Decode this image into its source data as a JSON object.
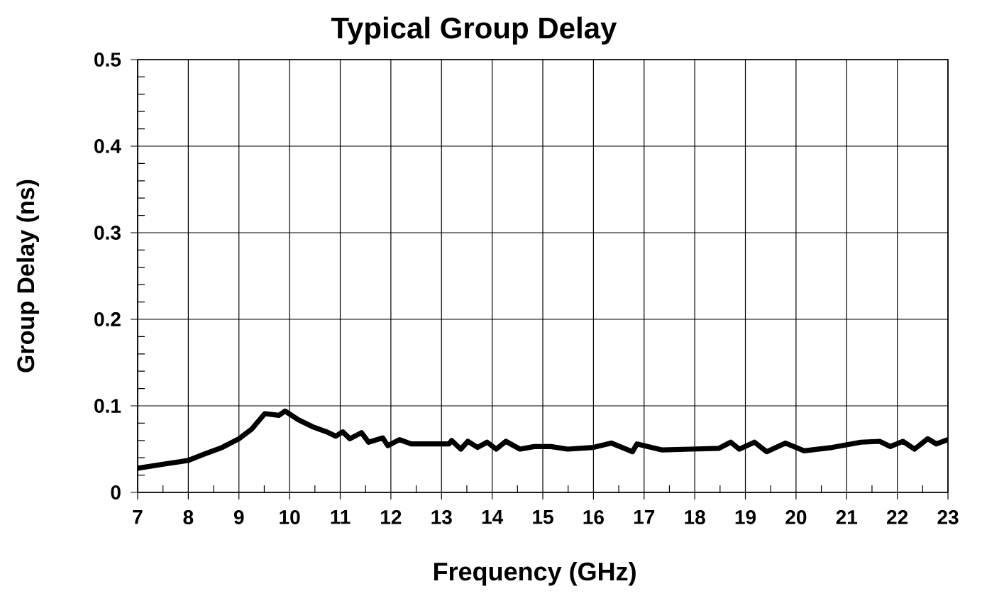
{
  "chart_data": {
    "type": "line",
    "title": "Typical Group Delay",
    "xlabel": "Frequency  (GHz)",
    "ylabel": "Group Delay (ns)",
    "x": [
      7.0,
      7.55,
      8.0,
      8.3,
      8.67,
      9.0,
      9.25,
      9.51,
      9.79,
      9.91,
      10.17,
      10.45,
      10.73,
      10.91,
      11.05,
      11.19,
      11.42,
      11.56,
      11.84,
      11.94,
      12.17,
      12.4,
      13.15,
      13.2,
      13.38,
      13.52,
      13.71,
      13.9,
      14.08,
      14.27,
      14.55,
      14.83,
      15.16,
      15.49,
      16.0,
      16.35,
      16.77,
      16.86,
      17.36,
      17.92,
      18.48,
      18.71,
      18.88,
      19.18,
      19.42,
      19.79,
      20.16,
      20.72,
      21.28,
      21.65,
      21.86,
      22.11,
      22.34,
      22.6,
      22.77,
      23.0
    ],
    "series": [
      {
        "color": "#000000",
        "line_style": "solid",
        "values": [
          0.028,
          0.033,
          0.037,
          0.044,
          0.052,
          0.062,
          0.073,
          0.091,
          0.089,
          0.094,
          0.084,
          0.076,
          0.07,
          0.065,
          0.07,
          0.062,
          0.069,
          0.058,
          0.063,
          0.054,
          0.061,
          0.056,
          0.056,
          0.06,
          0.05,
          0.059,
          0.052,
          0.058,
          0.05,
          0.059,
          0.05,
          0.053,
          0.053,
          0.05,
          0.052,
          0.057,
          0.047,
          0.056,
          0.049,
          0.05,
          0.051,
          0.058,
          0.05,
          0.058,
          0.047,
          0.057,
          0.048,
          0.052,
          0.058,
          0.059,
          0.053,
          0.059,
          0.05,
          0.062,
          0.056,
          0.061
        ]
      }
    ],
    "xlim": [
      7,
      23
    ],
    "ylim": [
      0,
      0.5
    ],
    "xticks": [
      7,
      {
        "value": 7.5,
        "label": null
      },
      8,
      {
        "value": 8.5,
        "label": null
      },
      9,
      {
        "value": 9.5,
        "label": null
      },
      10,
      {
        "value": 10.5,
        "label": null
      },
      11,
      {
        "value": 11.5,
        "label": null
      },
      12,
      {
        "value": 12.5,
        "label": null
      },
      13,
      {
        "value": 13.5,
        "label": null
      },
      14,
      {
        "value": 14.5,
        "label": null
      },
      15,
      {
        "value": 15.5,
        "label": null
      },
      16,
      {
        "value": 16.5,
        "label": null
      },
      17,
      {
        "value": 17.5,
        "label": null
      },
      18,
      {
        "value": 18.5,
        "label": null
      },
      19,
      {
        "value": 19.5,
        "label": null
      },
      20,
      {
        "value": 20.5,
        "label": null
      },
      21,
      {
        "value": 21.5,
        "label": null
      },
      22,
      {
        "value": 22.5,
        "label": null
      },
      23
    ],
    "yticks": [
      0,
      {
        "value": 0.02,
        "label": null
      },
      {
        "value": 0.04,
        "label": null
      },
      {
        "value": 0.06,
        "label": null
      },
      {
        "value": 0.08,
        "label": null
      },
      0.1,
      {
        "value": 0.12,
        "label": null
      },
      {
        "value": 0.14,
        "label": null
      },
      {
        "value": 0.16,
        "label": null
      },
      {
        "value": 0.18,
        "label": null
      },
      0.2,
      {
        "value": 0.22,
        "label": null
      },
      {
        "value": 0.24,
        "label": null
      },
      {
        "value": 0.26,
        "label": null
      },
      {
        "value": 0.28,
        "label": null
      },
      0.3,
      {
        "value": 0.32,
        "label": null
      },
      {
        "value": 0.34,
        "label": null
      },
      {
        "value": 0.36,
        "label": null
      },
      {
        "value": 0.38,
        "label": null
      },
      0.4,
      {
        "value": 0.42,
        "label": null
      },
      {
        "value": 0.44,
        "label": null
      },
      {
        "value": 0.46,
        "label": null
      },
      {
        "value": 0.48,
        "label": null
      },
      0.5
    ],
    "grid": true
  }
}
